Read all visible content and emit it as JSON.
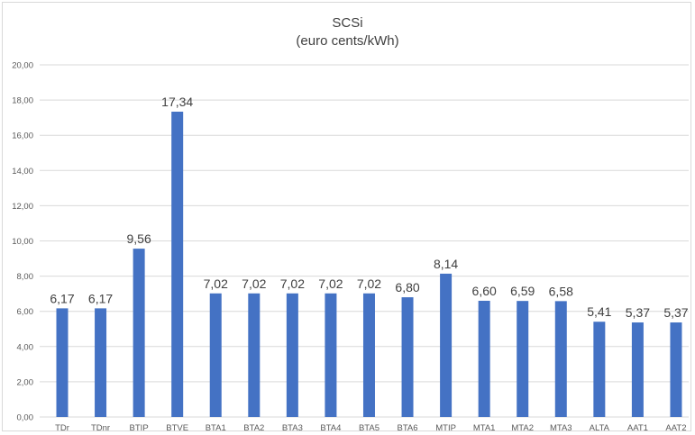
{
  "chart_data": {
    "type": "bar",
    "title": "SCSi",
    "subtitle": "(euro cents/kWh)",
    "xlabel": "",
    "ylabel": "",
    "ylim": [
      0,
      20
    ],
    "yticks": [
      "0,00",
      "2,00",
      "4,00",
      "6,00",
      "8,00",
      "10,00",
      "12,00",
      "14,00",
      "16,00",
      "18,00",
      "20,00"
    ],
    "grid": true,
    "legend": "none",
    "bar_color": "#4472c4",
    "categories": [
      "TDr",
      "TDnr",
      "BTIP",
      "BTVE",
      "BTA1",
      "BTA2",
      "BTA3",
      "BTA4",
      "BTA5",
      "BTA6",
      "MTIP",
      "MTA1",
      "MTA2",
      "MTA3",
      "ALTA",
      "AAT1",
      "AAT2"
    ],
    "values": [
      6.17,
      6.17,
      9.56,
      17.34,
      7.02,
      7.02,
      7.02,
      7.02,
      7.02,
      6.8,
      8.14,
      6.6,
      6.59,
      6.58,
      5.41,
      5.37,
      5.37
    ],
    "value_labels": [
      "6,17",
      "6,17",
      "9,56",
      "17,34",
      "7,02",
      "7,02",
      "7,02",
      "7,02",
      "7,02",
      "6,80",
      "8,14",
      "6,60",
      "6,59",
      "6,58",
      "5,41",
      "5,37",
      "5,37"
    ]
  }
}
